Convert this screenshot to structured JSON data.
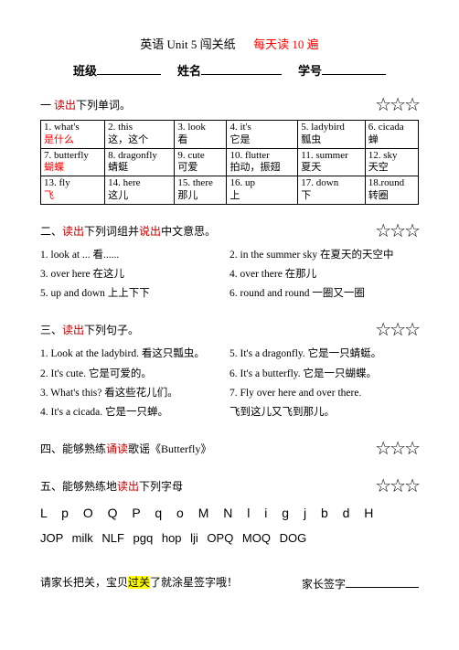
{
  "title": {
    "prefix": "英语 Unit 5 闯关纸",
    "suffix_red": "每天读 10 遍"
  },
  "header": {
    "class_label": "班级",
    "name_label": "姓名",
    "num_label": "学号"
  },
  "sec1": {
    "head_a": "一 ",
    "head_b": "读出",
    "head_c": "下列单词。",
    "stars": "☆☆☆",
    "rows": [
      [
        {
          "en": "1. what's",
          "cn": "是什么",
          "cn_red": true
        },
        {
          "en": "2. this",
          "cn": "这，这个"
        },
        {
          "en": "3.  look",
          "cn": "看"
        },
        {
          "en": "4. it's",
          "cn": "它是"
        },
        {
          "en": "5. ladybird",
          "cn": "瓢虫"
        },
        {
          "en": "6.  cicada",
          "cn": "蝉"
        }
      ],
      [
        {
          "en": "7. butterfly",
          "cn": "蝴蝶",
          "cn_red": true
        },
        {
          "en": "8. dragonfly",
          "cn": "蜻蜓"
        },
        {
          "en": "9. cute",
          "cn": "可爱"
        },
        {
          "en": "10. flutter",
          "cn": "拍动，振翅"
        },
        {
          "en": "11. summer",
          "cn": "夏天"
        },
        {
          "en": "12. sky",
          "cn": "天空"
        }
      ],
      [
        {
          "en": "13. fly",
          "cn": "飞",
          "cn_red": true
        },
        {
          "en": "14. here",
          "cn": "这儿"
        },
        {
          "en": "15. there",
          "cn": "那儿"
        },
        {
          "en": "16. up",
          "cn": "上"
        },
        {
          "en": "17. down",
          "cn": "下"
        },
        {
          "en": "18.round",
          "cn": "转圈"
        }
      ]
    ]
  },
  "sec2": {
    "head_a": "二、",
    "head_b": "读出",
    "head_c": "下列词组并",
    "head_d": "说出",
    "head_e": "中文意思。",
    "stars": "☆☆☆",
    "left": [
      "1. look at ...  看......",
      "3. over here  在这儿",
      "5. up and down  上上下下"
    ],
    "right": [
      "2. in the summer sky  在夏天的天空中",
      "4. over there  在那儿",
      "6. round and round  一圈又一圈"
    ]
  },
  "sec3": {
    "head_a": "三、",
    "head_b": "读出",
    "head_c": "下列句子。",
    "stars": "☆☆☆",
    "left": [
      "1. Look at the ladybird.  看这只瓢虫。",
      "2. It's cute.  它是可爱的。",
      "3. What's this?  看这些花儿们。",
      "4. It's a cicada.  它是一只蝉。"
    ],
    "right": [
      "5. It's a dragonfly.  它是一只蜻蜓。",
      "6. It's a butterfly.  它是一只蝴蝶。",
      "7. Fly over here and over there.",
      "   飞到这儿又飞到那儿。"
    ]
  },
  "sec4": {
    "head_a": "四、能够熟练",
    "head_b": "诵读",
    "head_c": "歌谣《Butterfly》",
    "stars": "☆☆☆"
  },
  "sec5": {
    "head_a": "五、能够熟练地",
    "head_b": "读出",
    "head_c": "下列字母",
    "stars": "☆☆☆",
    "row1": "L p O Q P q o M N l i g j b d H",
    "row2": "JOP  milk  NLF  pgq  hop  lji  OPQ  MOQ  DOG"
  },
  "bottom": {
    "left_a": "请家长把关，宝贝",
    "left_hl": "过关",
    "left_b": "了就涂星签字哦！",
    "right_label": "家长签字"
  }
}
